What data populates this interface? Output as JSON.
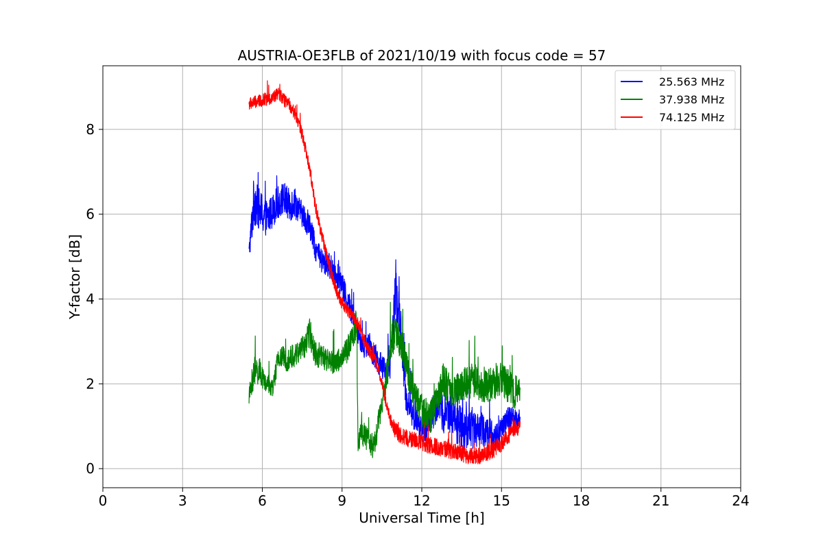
{
  "chart_data": {
    "type": "line",
    "title": "AUSTRIA-OE3FLB of 2021/10/19 with focus code = 57",
    "xlabel": "Universal Time [h]",
    "ylabel": "Y-factor [dB]",
    "xlim": [
      0,
      24
    ],
    "ylim": [
      -0.45,
      9.5
    ],
    "xticks": [
      0,
      3,
      6,
      9,
      12,
      15,
      18,
      21,
      24
    ],
    "yticks": [
      0,
      2,
      4,
      6,
      8
    ],
    "grid": true,
    "legend_position": "top-right",
    "series": [
      {
        "name": "25.563 MHz",
        "color": "#0000ff",
        "x": [
          5.5,
          5.7,
          5.8,
          6.0,
          6.2,
          6.5,
          6.8,
          7.0,
          7.2,
          7.4,
          7.6,
          7.8,
          8.0,
          8.2,
          8.5,
          8.8,
          9.0,
          9.2,
          9.5,
          9.8,
          10.0,
          10.3,
          10.6,
          10.8,
          11.0,
          11.2,
          11.4,
          11.6,
          11.8,
          12.0,
          12.3,
          12.6,
          12.8,
          13.0,
          13.3,
          13.6,
          14.0,
          14.3,
          14.6,
          14.8,
          15.0,
          15.3,
          15.5,
          15.7
        ],
        "y": [
          5.1,
          6.4,
          6.2,
          6.0,
          5.9,
          6.2,
          6.4,
          6.2,
          6.3,
          6.1,
          5.9,
          5.7,
          5.2,
          4.9,
          4.8,
          4.6,
          4.3,
          4.0,
          3.4,
          2.9,
          2.9,
          2.6,
          2.3,
          2.4,
          4.1,
          3.4,
          1.7,
          1.4,
          1.1,
          0.9,
          1.1,
          1.6,
          1.3,
          1.4,
          1.1,
          0.9,
          1.0,
          0.9,
          0.8,
          0.7,
          0.9,
          1.2,
          1.1,
          1.3
        ],
        "spread": [
          0.2,
          0.7,
          0.5,
          0.5,
          0.4,
          0.4,
          0.4,
          0.4,
          0.4,
          0.3,
          0.3,
          0.3,
          0.3,
          0.3,
          0.3,
          0.3,
          0.3,
          0.3,
          0.3,
          0.3,
          0.3,
          0.3,
          0.3,
          0.3,
          0.6,
          0.5,
          0.4,
          0.4,
          0.3,
          0.3,
          0.4,
          0.5,
          0.5,
          0.5,
          0.5,
          0.5,
          0.5,
          0.4,
          0.4,
          0.4,
          0.3,
          0.3,
          0.3,
          0.2
        ]
      },
      {
        "name": "37.938 MHz",
        "color": "#008000",
        "x": [
          5.5,
          5.7,
          5.9,
          6.1,
          6.4,
          6.6,
          6.8,
          7.0,
          7.3,
          7.6,
          7.8,
          8.0,
          8.3,
          8.6,
          9.0,
          9.3,
          9.55,
          9.6,
          9.8,
          10.0,
          10.2,
          10.4,
          10.6,
          10.8,
          11.0,
          11.2,
          11.4,
          11.6,
          11.8,
          12.0,
          12.3,
          12.6,
          12.8,
          13.0,
          13.3,
          13.6,
          14.0,
          14.3,
          14.6,
          15.0,
          15.3,
          15.5,
          15.7
        ],
        "y": [
          1.7,
          2.3,
          2.3,
          2.0,
          1.9,
          2.6,
          2.6,
          2.6,
          2.7,
          2.9,
          3.2,
          2.7,
          2.6,
          2.5,
          2.6,
          2.9,
          3.5,
          0.7,
          0.8,
          0.7,
          0.5,
          1.2,
          1.8,
          2.7,
          3.2,
          3.0,
          2.5,
          2.0,
          1.6,
          1.4,
          1.2,
          1.6,
          2.1,
          1.9,
          1.8,
          2.0,
          2.1,
          1.9,
          2.0,
          2.1,
          1.9,
          1.8,
          1.9
        ],
        "spread": [
          0.2,
          0.4,
          0.3,
          0.2,
          0.2,
          0.3,
          0.3,
          0.3,
          0.3,
          0.3,
          0.4,
          0.3,
          0.3,
          0.3,
          0.3,
          0.3,
          0.4,
          0.3,
          0.3,
          0.3,
          0.3,
          0.3,
          0.3,
          0.4,
          0.4,
          0.4,
          0.4,
          0.4,
          0.4,
          0.4,
          0.4,
          0.4,
          0.4,
          0.4,
          0.4,
          0.4,
          0.4,
          0.4,
          0.4,
          0.4,
          0.4,
          0.4,
          0.3
        ]
      },
      {
        "name": "74.125 MHz",
        "color": "#ff0000",
        "x": [
          5.5,
          5.8,
          6.1,
          6.4,
          6.6,
          6.8,
          7.0,
          7.2,
          7.4,
          7.6,
          7.8,
          8.0,
          8.2,
          8.4,
          8.6,
          8.8,
          9.0,
          9.2,
          9.4,
          9.6,
          9.8,
          10.0,
          10.2,
          10.4,
          10.6,
          10.8,
          11.0,
          11.2,
          11.5,
          11.8,
          12.0,
          12.3,
          12.6,
          12.9,
          13.2,
          13.5,
          13.8,
          14.1,
          14.4,
          14.7,
          15.0,
          15.3,
          15.5,
          15.7
        ],
        "y": [
          8.6,
          8.65,
          8.7,
          8.75,
          8.85,
          8.7,
          8.6,
          8.4,
          8.1,
          7.6,
          7.0,
          6.2,
          5.6,
          5.1,
          4.6,
          4.2,
          3.9,
          3.75,
          3.6,
          3.4,
          3.1,
          2.8,
          2.6,
          2.3,
          1.7,
          1.2,
          0.9,
          0.8,
          0.7,
          0.65,
          0.6,
          0.55,
          0.5,
          0.45,
          0.4,
          0.35,
          0.3,
          0.3,
          0.35,
          0.45,
          0.6,
          0.8,
          0.95,
          1.0
        ],
        "spread": [
          0.15,
          0.15,
          0.15,
          0.15,
          0.15,
          0.15,
          0.15,
          0.15,
          0.15,
          0.15,
          0.15,
          0.15,
          0.15,
          0.15,
          0.15,
          0.15,
          0.15,
          0.15,
          0.15,
          0.15,
          0.15,
          0.15,
          0.15,
          0.15,
          0.15,
          0.15,
          0.2,
          0.2,
          0.2,
          0.2,
          0.2,
          0.2,
          0.2,
          0.2,
          0.2,
          0.2,
          0.2,
          0.2,
          0.2,
          0.2,
          0.2,
          0.2,
          0.2,
          0.2
        ]
      }
    ]
  }
}
